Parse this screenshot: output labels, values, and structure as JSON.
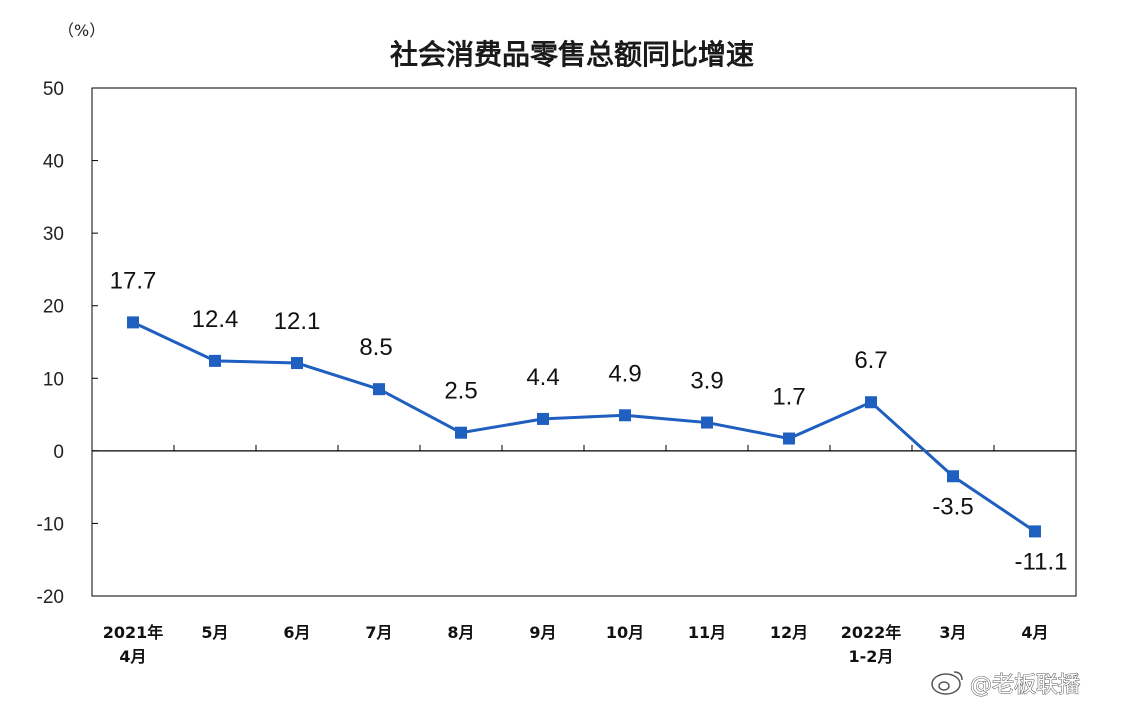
{
  "chart_data": {
    "type": "line",
    "title": "社会消费品零售总额同比增速",
    "unit_label": "（%）",
    "categories": [
      [
        "2021年",
        "4月"
      ],
      [
        "5月"
      ],
      [
        "6月"
      ],
      [
        "7月"
      ],
      [
        "8月"
      ],
      [
        "9月"
      ],
      [
        "10月"
      ],
      [
        "11月"
      ],
      [
        "12月"
      ],
      [
        "2022年",
        "1-2月"
      ],
      [
        "3月"
      ],
      [
        "4月"
      ]
    ],
    "values": [
      17.7,
      12.4,
      12.1,
      8.5,
      2.5,
      4.4,
      4.9,
      3.9,
      1.7,
      6.7,
      -3.5,
      -11.1
    ],
    "data_labels": [
      "17.7",
      "12.4",
      "12.1",
      "8.5",
      "2.5",
      "4.4",
      "4.9",
      "3.9",
      "1.7",
      "6.7",
      "-3.5",
      "-11.1"
    ],
    "ylim": [
      -20,
      50
    ],
    "yticks": [
      50,
      40,
      30,
      20,
      10,
      0,
      -10,
      -20
    ],
    "ytick_labels": [
      "50",
      "40",
      "30",
      "20",
      "10",
      "0",
      "-10",
      "-20"
    ],
    "grid": false,
    "series_color": "#1f5fbf"
  },
  "watermark": "@老板联播"
}
